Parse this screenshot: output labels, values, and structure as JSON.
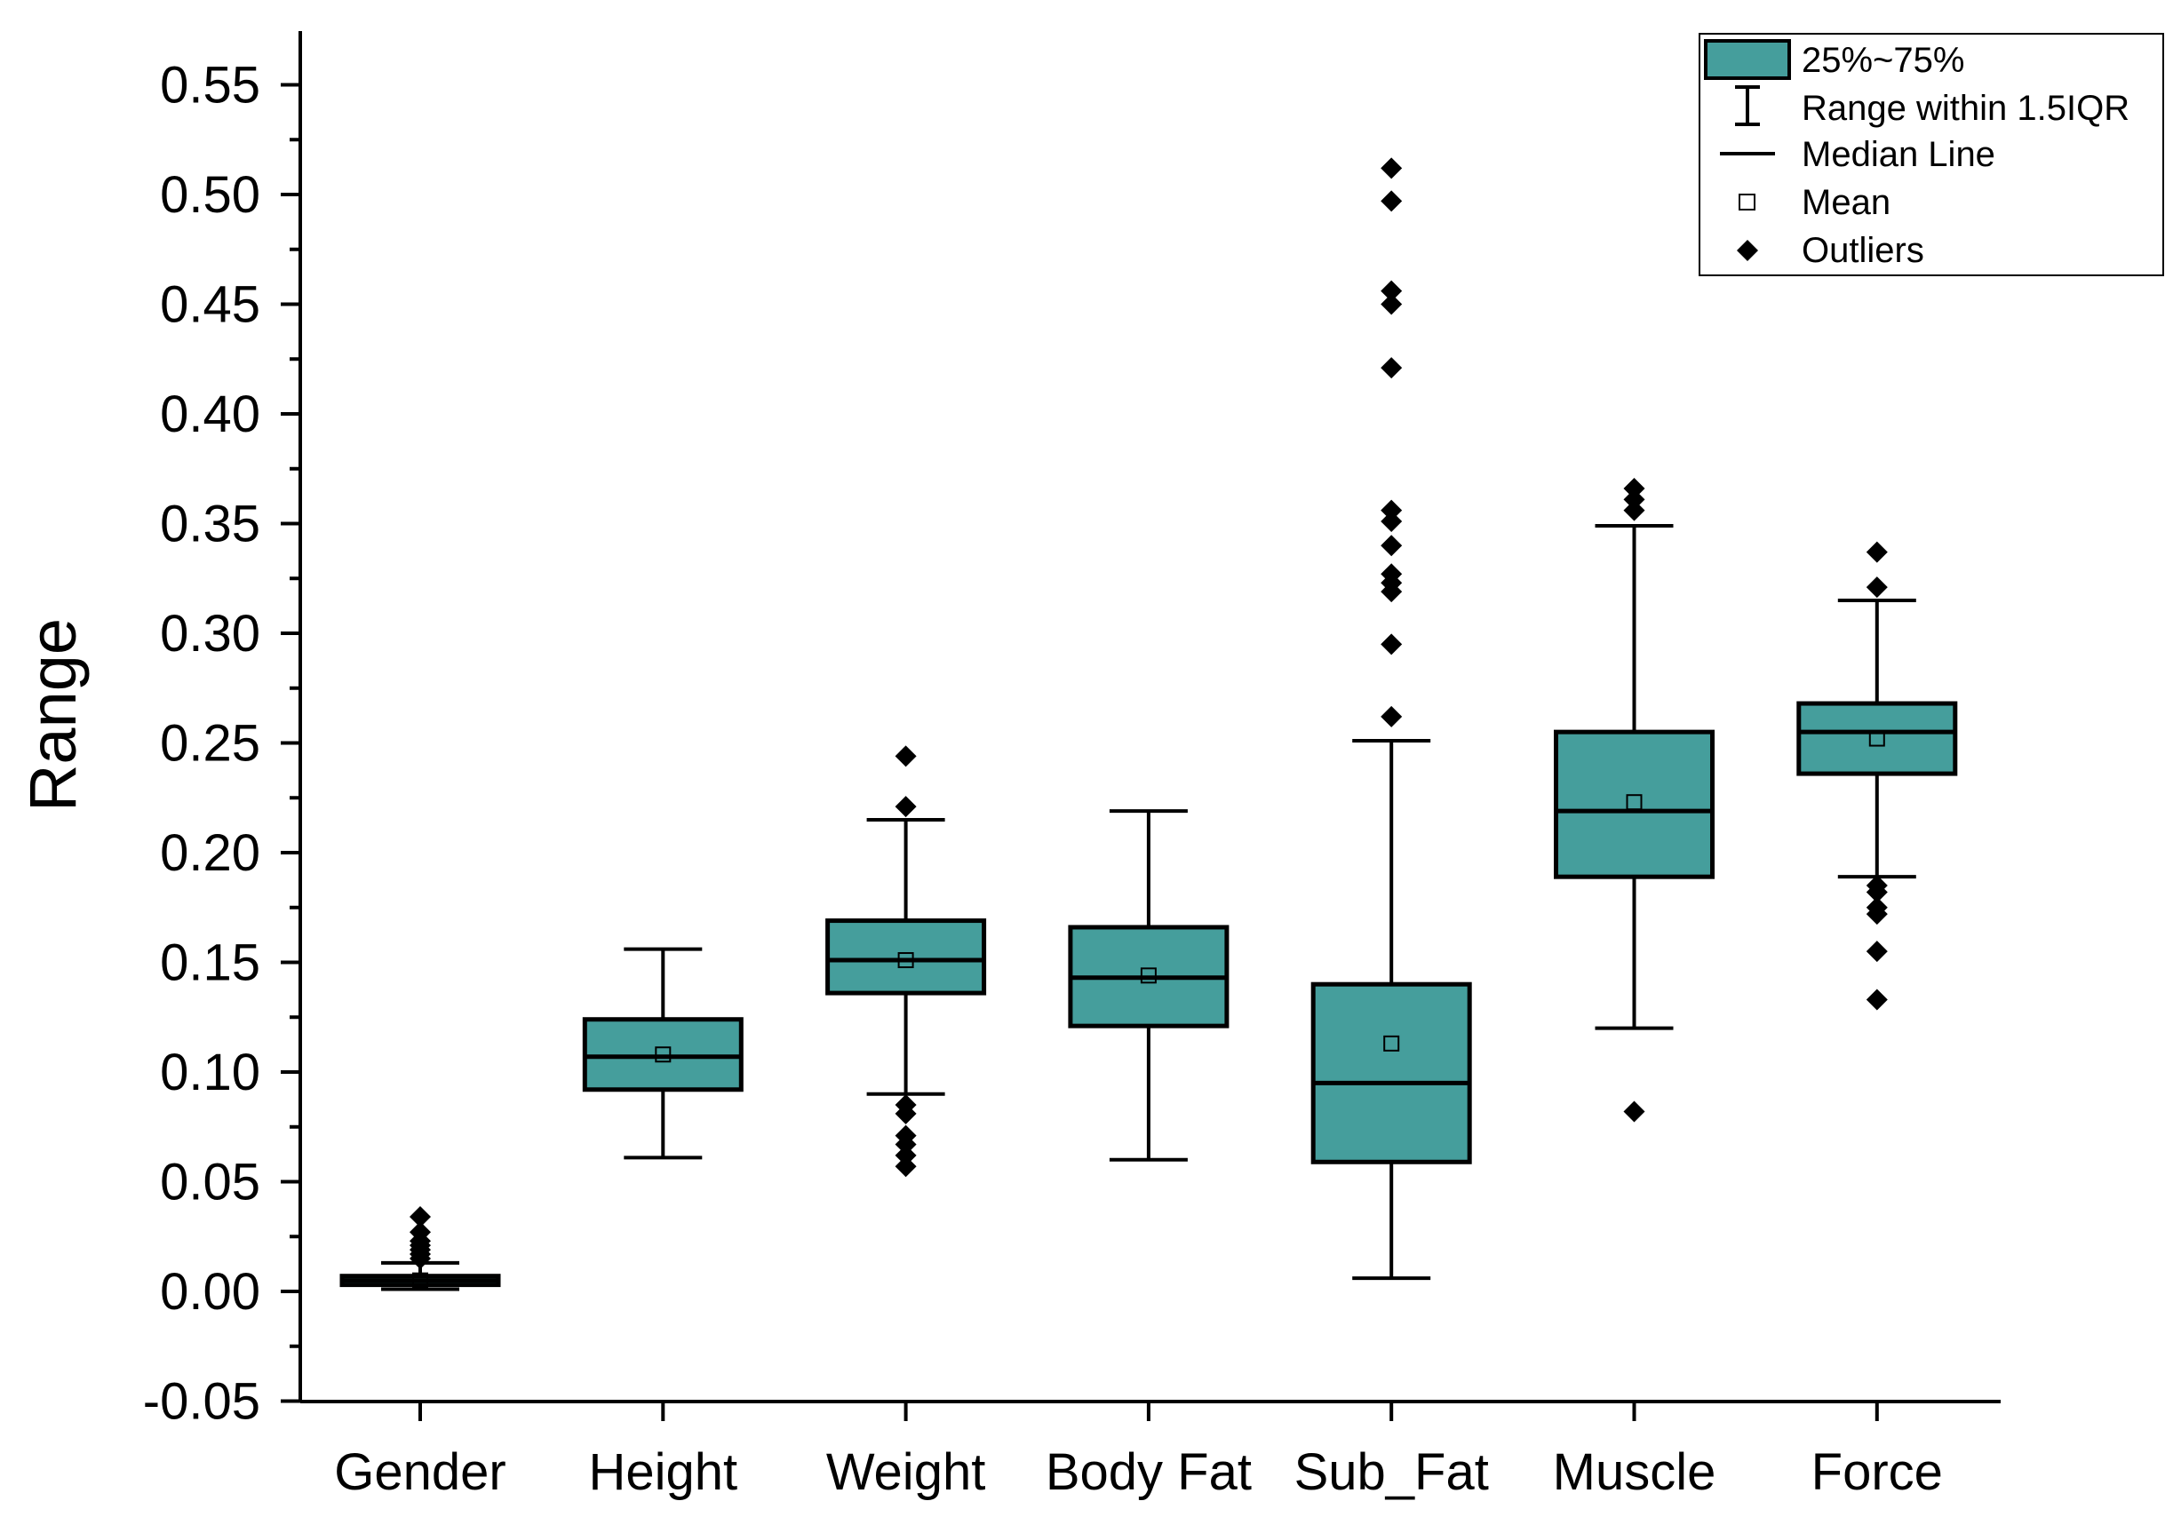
{
  "chart_data": {
    "type": "box",
    "title": "",
    "xlabel": "",
    "ylabel": "Range",
    "ylim": [
      -0.05,
      0.575
    ],
    "yticks": [
      "-0.05",
      "0.00",
      "0.05",
      "0.10",
      "0.15",
      "0.20",
      "0.25",
      "0.30",
      "0.35",
      "0.40",
      "0.45",
      "0.50",
      "0.55"
    ],
    "categories": [
      "Gender",
      "Height",
      "Weight",
      "Body Fat",
      "Sub_Fat",
      "Muscle",
      "Force"
    ],
    "box_color": "#459e9c",
    "boxes": [
      {
        "name": "Gender",
        "whisker_low": 0.001,
        "q1": 0.003,
        "median": 0.005,
        "q3": 0.007,
        "whisker_high": 0.013,
        "mean": 0.005,
        "outliers": [
          0.015,
          0.017,
          0.019,
          0.021,
          0.023,
          0.027,
          0.034
        ]
      },
      {
        "name": "Height",
        "whisker_low": 0.061,
        "q1": 0.092,
        "median": 0.107,
        "q3": 0.124,
        "whisker_high": 0.156,
        "mean": 0.108,
        "outliers": []
      },
      {
        "name": "Weight",
        "whisker_low": 0.09,
        "q1": 0.136,
        "median": 0.151,
        "q3": 0.169,
        "whisker_high": 0.215,
        "mean": 0.151,
        "outliers": [
          0.057,
          0.062,
          0.067,
          0.071,
          0.081,
          0.085,
          0.221,
          0.244
        ]
      },
      {
        "name": "Body Fat",
        "whisker_low": 0.06,
        "q1": 0.121,
        "median": 0.143,
        "q3": 0.166,
        "whisker_high": 0.219,
        "mean": 0.144,
        "outliers": []
      },
      {
        "name": "Sub_Fat",
        "whisker_low": 0.006,
        "q1": 0.059,
        "median": 0.095,
        "q3": 0.14,
        "whisker_high": 0.251,
        "mean": 0.113,
        "outliers": [
          0.262,
          0.295,
          0.319,
          0.323,
          0.327,
          0.34,
          0.351,
          0.356,
          0.421,
          0.45,
          0.456,
          0.497,
          0.512
        ]
      },
      {
        "name": "Muscle",
        "whisker_low": 0.12,
        "q1": 0.189,
        "median": 0.219,
        "q3": 0.255,
        "whisker_high": 0.349,
        "mean": 0.223,
        "outliers": [
          0.082,
          0.356,
          0.361,
          0.366
        ]
      },
      {
        "name": "Force",
        "whisker_low": 0.189,
        "q1": 0.236,
        "median": 0.255,
        "q3": 0.268,
        "whisker_high": 0.315,
        "mean": 0.252,
        "outliers": [
          0.133,
          0.155,
          0.172,
          0.175,
          0.182,
          0.185,
          0.321,
          0.337
        ]
      }
    ],
    "legend": {
      "position": "top-right",
      "items": [
        "25%~75%",
        "Range within 1.5IQR",
        "Median Line",
        "Mean",
        "Outliers"
      ]
    }
  }
}
